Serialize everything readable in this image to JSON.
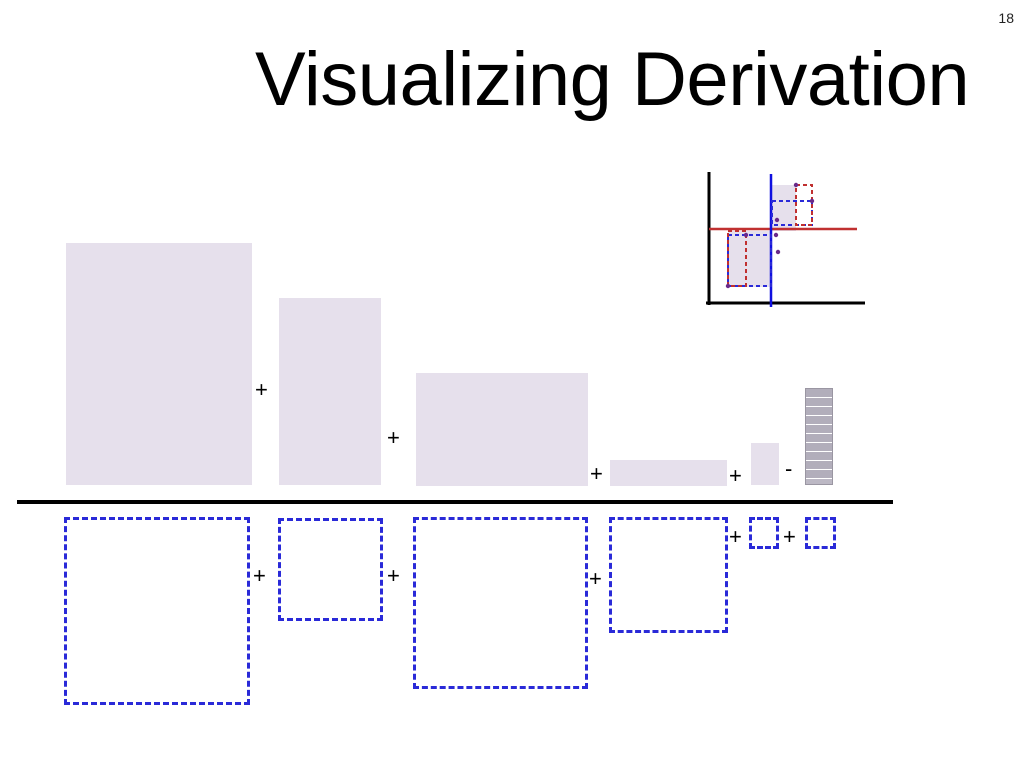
{
  "slide": {
    "number": "18",
    "title": "Visualizing Derivation"
  },
  "operators": {
    "plus": "+",
    "minus": "-"
  },
  "colors": {
    "filled_box": "#e6e0ec",
    "dashed_box": "#2a2ad8",
    "divider": "#000000",
    "inset_vertical_line": "#1010e0",
    "inset_horizontal_line": "#c03030",
    "inset_red_dashed": "#c03030",
    "stack": "#bcb8c4"
  }
}
